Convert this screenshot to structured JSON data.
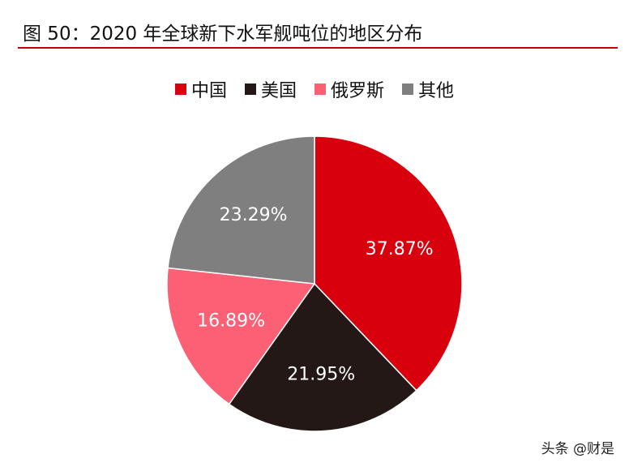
{
  "title": "图 50：2020 年全球新下水军舰吨位的地区分布",
  "watermark": "头条 @财是",
  "chart_data": {
    "type": "pie",
    "title": "图 50：2020 年全球新下水军舰吨位的地区分布",
    "legend_position": "top",
    "series": [
      {
        "name": "中国",
        "value": 37.87,
        "label": "37.87%",
        "color": "#d9000d"
      },
      {
        "name": "美国",
        "value": 21.95,
        "label": "21.95%",
        "color": "#231815"
      },
      {
        "name": "俄罗斯",
        "value": 16.89,
        "label": "16.89%",
        "color": "#fb6074"
      },
      {
        "name": "其他",
        "value": 23.29,
        "label": "23.29%",
        "color": "#7f7f7f"
      }
    ]
  }
}
